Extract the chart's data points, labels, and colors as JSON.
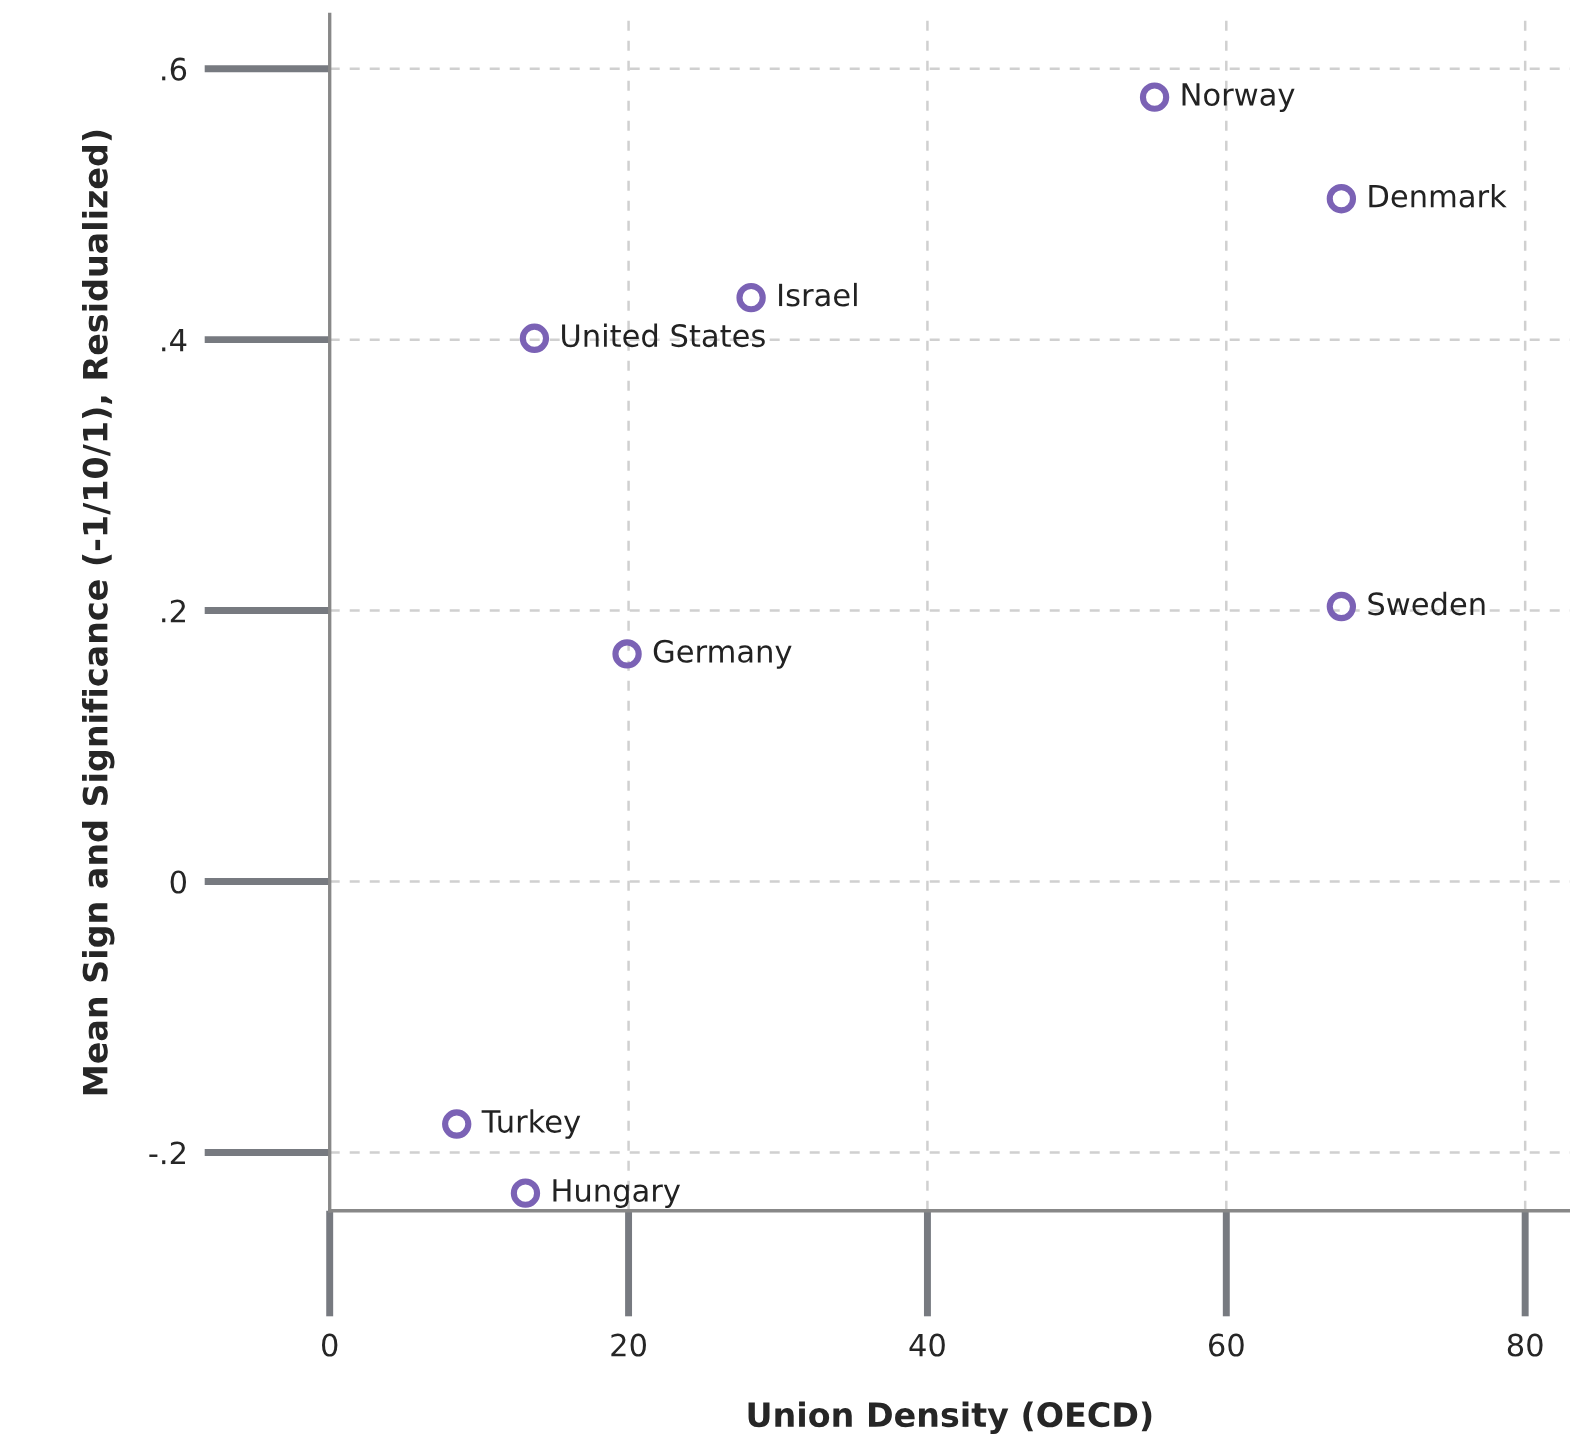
{
  "chart_data": {
    "type": "scatter",
    "xlabel": "Union Density (OECD)",
    "ylabel": "Mean Sign and Significance (-1/10/1), Residualized)",
    "x": [
      55.2,
      67.7,
      28.2,
      13.7,
      67.7,
      19.9,
      8.5,
      13.1
    ],
    "series": [
      {
        "color": "#7b62b5",
        "values": [
          0.579,
          0.504,
          0.431,
          0.401,
          0.203,
          0.168,
          -0.179,
          -0.23
        ]
      }
    ],
    "annotations": [
      {
        "text": "Norway",
        "x": 55.2,
        "y": 0.579
      },
      {
        "text": "Denmark",
        "x": 67.7,
        "y": 0.504
      },
      {
        "text": "Israel",
        "x": 28.2,
        "y": 0.431
      },
      {
        "text": "United States",
        "x": 13.7,
        "y": 0.401
      },
      {
        "text": "Sweden",
        "x": 67.7,
        "y": 0.203
      },
      {
        "text": "Germany",
        "x": 19.9,
        "y": 0.168
      },
      {
        "text": "Turkey",
        "x": 8.5,
        "y": -0.179
      },
      {
        "text": "Hungary",
        "x": 13.1,
        "y": -0.23
      }
    ],
    "xlim": [
      0,
      83
    ],
    "xticks": [
      0,
      20,
      40,
      60,
      80
    ],
    "ylim": [
      -0.243,
      0.64
    ],
    "yticks": [
      {
        "value": -0.2,
        "label": "-.2"
      },
      {
        "value": 0,
        "label": "0"
      },
      {
        "value": 0.2,
        "label": ".2"
      },
      {
        "value": 0.4,
        "label": ".4"
      },
      {
        "value": 0.6,
        "label": ".6"
      }
    ],
    "grid": true,
    "marker": "circle",
    "legend": false
  }
}
